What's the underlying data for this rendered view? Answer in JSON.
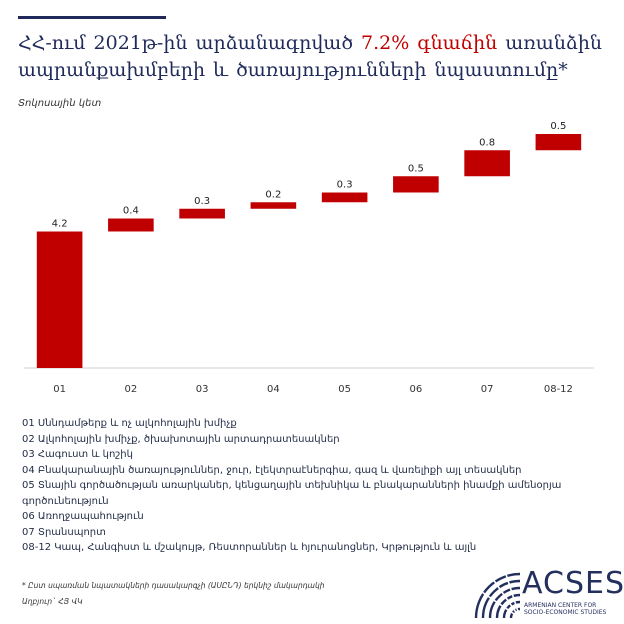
{
  "title": {
    "line1_a": "ՀՀ-ում 2021թ-ին արձանագրված",
    "line1_highlight": "7.2% գնաճին",
    "line1_b": "առանձին",
    "line2": "ապրանքախմբերի և ծառայությունների նպաստումը*"
  },
  "unit_label": "Տոկոսային կետ",
  "chart_data": {
    "type": "bar",
    "subtype": "waterfall",
    "categories": [
      "01",
      "02",
      "03",
      "04",
      "05",
      "06",
      "07",
      "08-12"
    ],
    "values": [
      4.2,
      0.4,
      0.3,
      0.2,
      0.3,
      0.5,
      0.8,
      0.5
    ],
    "value_labels": [
      "4.2",
      "0.4",
      "0.3",
      "0.2",
      "0.3",
      "0.5",
      "0.8",
      "0.5"
    ],
    "total": 7.2,
    "ylim": [
      0,
      7.2
    ],
    "bar_color": "#c00000",
    "grid": false
  },
  "legend": [
    "01 Սննդամթերք և ոչ ալկոհոլային խմիչք",
    "02 Ալկոհոլային խմիչք, ծխախոտային արտադրատեսակներ",
    "03 Հագուստ և կոշիկ",
    "04 Բնակարանային ծառայություններ, ջուր, էլեկտրաէներգիա, գազ և վառելիքի այլ տեսակներ",
    "05 Տնային գործածության առարկաներ, կենցաղային տեխնիկա և բնակարանների ինամքի ամենօրյա գործունեություն",
    "06 Առողջապահություն",
    "07 Տրանսպորտ",
    "08-12 Կապ, Հանգիստ և մշակույթ, Ռեստորաններ և հյուրանոցներ, Կրթություն և այլն"
  ],
  "footnote": {
    "note": "* Ըստ սպառման նպատակների դասակարգչի (ԱՍԸՆԴ) երկնիշ մակարդակի",
    "source": "Աղբյուր` ՀՅ ՎԿ"
  },
  "logo": {
    "word": "ACSES",
    "subtitle": "ARMENIAN CENTER FOR SOCIO-ECONOMIC STUDIES",
    "color": "#23305e"
  }
}
